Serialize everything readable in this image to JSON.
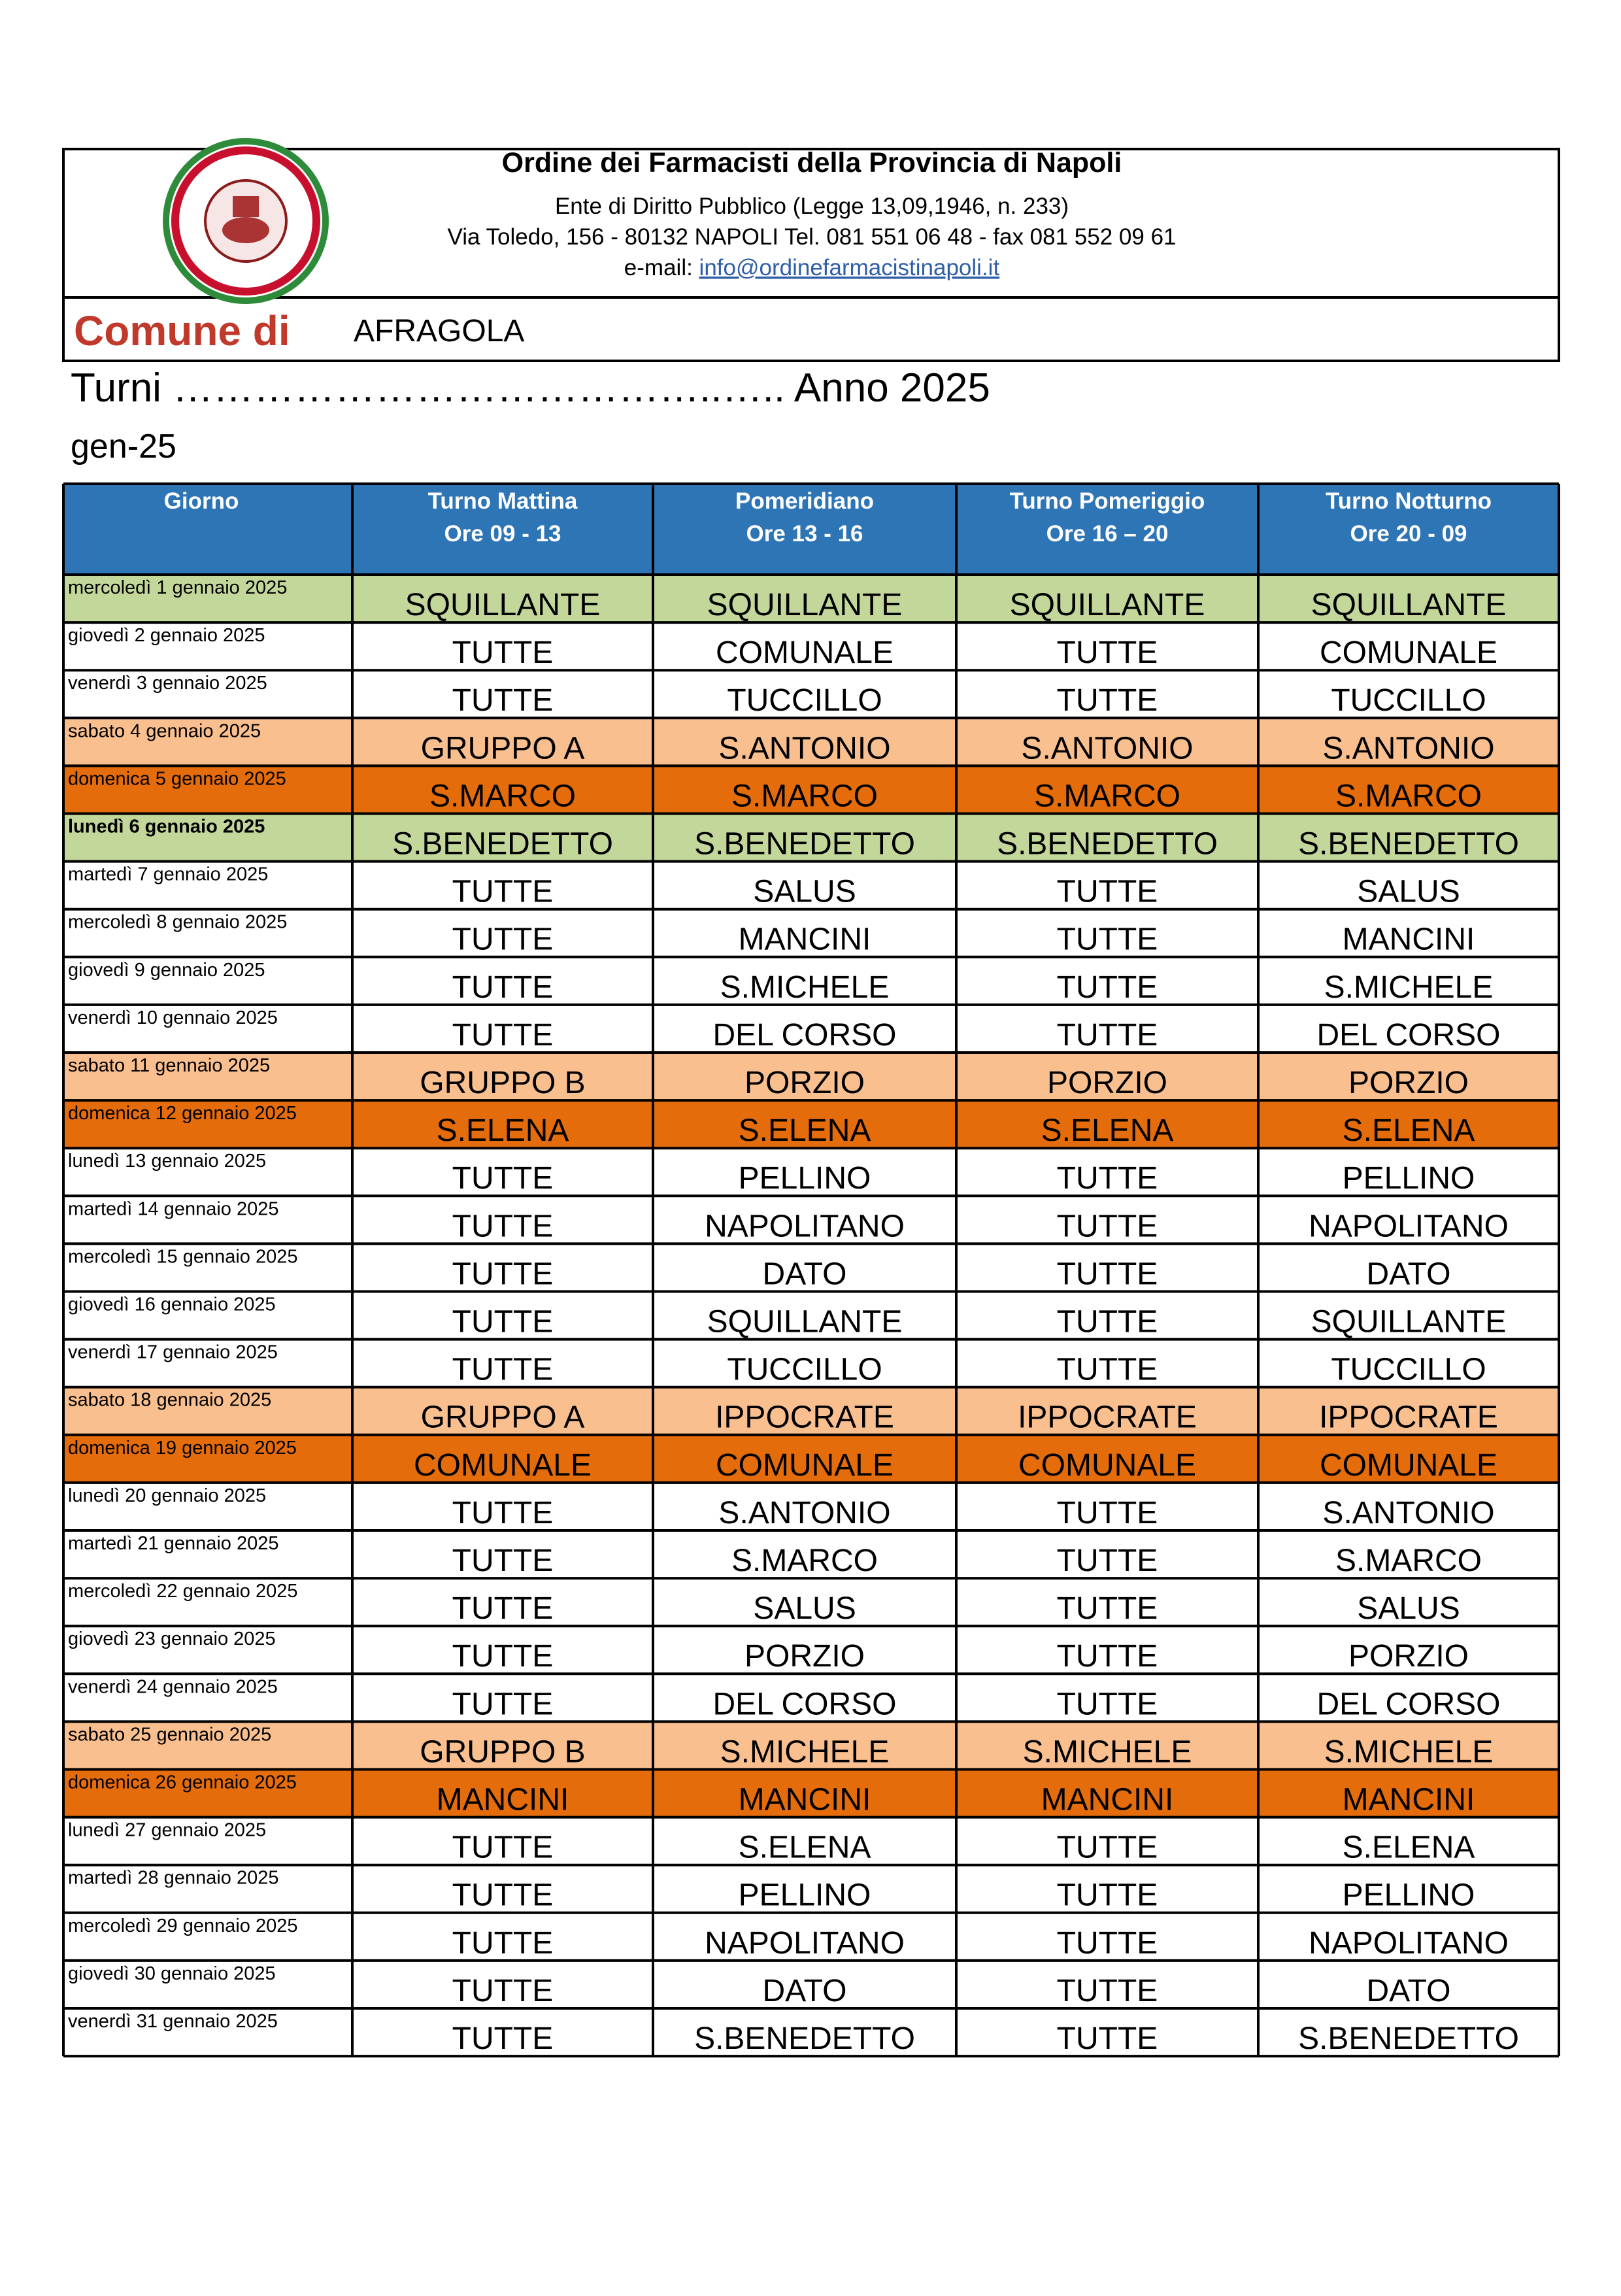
{
  "header": {
    "title": "Ordine dei Farmacisti della Provincia di Napoli",
    "line1": "Ente di Diritto Pubblico (Legge 13,09,1946, n. 233)",
    "line2": "Via Toledo, 156 - 80132 NAPOLI Tel. 081 551 06 48 - fax 081 552 09 61",
    "email_label": "e-mail: ",
    "email": "info@ordinefarmacistinapoli.it"
  },
  "comune": {
    "label": "Comune di",
    "name": "AFRAGOLA"
  },
  "turni": "Turni …………………………………..….. Anno 2025",
  "month": "gen-25",
  "table": {
    "columns": [
      [
        "Giorno"
      ],
      [
        "Turno Mattina",
        "Ore 09 - 13"
      ],
      [
        "Pomeridiano",
        "Ore 13 - 16"
      ],
      [
        "Turno Pomeriggio",
        "Ore 16 – 20"
      ],
      [
        "Turno Notturno",
        "Ore 20 - 09"
      ]
    ],
    "header_fill": "#2e75b6",
    "rows": [
      {
        "day": "mercoledì 1 gennaio 2025",
        "cells": [
          "SQUILLANTE",
          "SQUILLANTE",
          "SQUILLANTE",
          "SQUILLANTE"
        ],
        "fill": "#c4d79b"
      },
      {
        "day": "giovedì 2 gennaio 2025",
        "cells": [
          "TUTTE",
          "COMUNALE",
          "TUTTE",
          "COMUNALE"
        ],
        "fill": "#ffffff"
      },
      {
        "day": "venerdì 3 gennaio 2025",
        "cells": [
          "TUTTE",
          "TUCCILLO",
          "TUTTE",
          "TUCCILLO"
        ],
        "fill": "#ffffff"
      },
      {
        "day": "sabato 4 gennaio 2025",
        "cells": [
          "GRUPPO A",
          "S.ANTONIO",
          "S.ANTONIO",
          "S.ANTONIO"
        ],
        "fill": "#fabf8f"
      },
      {
        "day": "domenica 5 gennaio 2025",
        "cells": [
          "S.MARCO",
          "S.MARCO",
          "S.MARCO",
          "S.MARCO"
        ],
        "fill": "#e46c0a"
      },
      {
        "day": "lunedì 6 gennaio 2025",
        "cells": [
          "S.BENEDETTO",
          "S.BENEDETTO",
          "S.BENEDETTO",
          "S.BENEDETTO"
        ],
        "fill": "#c4d79b",
        "bold": true
      },
      {
        "day": "martedì 7 gennaio 2025",
        "cells": [
          "TUTTE",
          "SALUS",
          "TUTTE",
          "SALUS"
        ],
        "fill": "#ffffff"
      },
      {
        "day": "mercoledì 8 gennaio 2025",
        "cells": [
          "TUTTE",
          "MANCINI",
          "TUTTE",
          "MANCINI"
        ],
        "fill": "#ffffff"
      },
      {
        "day": "giovedì 9 gennaio 2025",
        "cells": [
          "TUTTE",
          "S.MICHELE",
          "TUTTE",
          "S.MICHELE"
        ],
        "fill": "#ffffff"
      },
      {
        "day": "venerdì 10 gennaio 2025",
        "cells": [
          "TUTTE",
          "DEL CORSO",
          "TUTTE",
          "DEL CORSO"
        ],
        "fill": "#ffffff"
      },
      {
        "day": "sabato 11 gennaio 2025",
        "cells": [
          "GRUPPO B",
          "PORZIO",
          "PORZIO",
          "PORZIO"
        ],
        "fill": "#fabf8f"
      },
      {
        "day": "domenica 12 gennaio 2025",
        "cells": [
          "S.ELENA",
          "S.ELENA",
          "S.ELENA",
          "S.ELENA"
        ],
        "fill": "#e46c0a"
      },
      {
        "day": "lunedì 13 gennaio 2025",
        "cells": [
          "TUTTE",
          "PELLINO",
          "TUTTE",
          "PELLINO"
        ],
        "fill": "#ffffff"
      },
      {
        "day": "martedì 14 gennaio 2025",
        "cells": [
          "TUTTE",
          "NAPOLITANO",
          "TUTTE",
          "NAPOLITANO"
        ],
        "fill": "#ffffff"
      },
      {
        "day": "mercoledì 15 gennaio 2025",
        "cells": [
          "TUTTE",
          "DATO",
          "TUTTE",
          "DATO"
        ],
        "fill": "#ffffff"
      },
      {
        "day": "giovedì 16 gennaio 2025",
        "cells": [
          "TUTTE",
          "SQUILLANTE",
          "TUTTE",
          "SQUILLANTE"
        ],
        "fill": "#ffffff"
      },
      {
        "day": "venerdì 17 gennaio 2025",
        "cells": [
          "TUTTE",
          "TUCCILLO",
          "TUTTE",
          "TUCCILLO"
        ],
        "fill": "#ffffff"
      },
      {
        "day": "sabato 18 gennaio 2025",
        "cells": [
          "GRUPPO A",
          "IPPOCRATE",
          "IPPOCRATE",
          "IPPOCRATE"
        ],
        "fill": "#fabf8f"
      },
      {
        "day": "domenica 19 gennaio 2025",
        "cells": [
          "COMUNALE",
          "COMUNALE",
          "COMUNALE",
          "COMUNALE"
        ],
        "fill": "#e46c0a"
      },
      {
        "day": "lunedì 20 gennaio 2025",
        "cells": [
          "TUTTE",
          "S.ANTONIO",
          "TUTTE",
          "S.ANTONIO"
        ],
        "fill": "#ffffff"
      },
      {
        "day": "martedì 21 gennaio 2025",
        "cells": [
          "TUTTE",
          "S.MARCO",
          "TUTTE",
          "S.MARCO"
        ],
        "fill": "#ffffff"
      },
      {
        "day": "mercoledì 22 gennaio 2025",
        "cells": [
          "TUTTE",
          "SALUS",
          "TUTTE",
          "SALUS"
        ],
        "fill": "#ffffff"
      },
      {
        "day": "giovedì 23 gennaio 2025",
        "cells": [
          "TUTTE",
          "PORZIO",
          "TUTTE",
          "PORZIO"
        ],
        "fill": "#ffffff"
      },
      {
        "day": "venerdì 24 gennaio 2025",
        "cells": [
          "TUTTE",
          "DEL CORSO",
          "TUTTE",
          "DEL CORSO"
        ],
        "fill": "#ffffff"
      },
      {
        "day": "sabato 25 gennaio 2025",
        "cells": [
          "GRUPPO B",
          "S.MICHELE",
          "S.MICHELE",
          "S.MICHELE"
        ],
        "fill": "#fabf8f"
      },
      {
        "day": "domenica 26 gennaio 2025",
        "cells": [
          "MANCINI",
          "MANCINI",
          "MANCINI",
          "MANCINI"
        ],
        "fill": "#e46c0a"
      },
      {
        "day": "lunedì 27 gennaio 2025",
        "cells": [
          "TUTTE",
          "S.ELENA",
          "TUTTE",
          "S.ELENA"
        ],
        "fill": "#ffffff"
      },
      {
        "day": "martedì 28 gennaio 2025",
        "cells": [
          "TUTTE",
          "PELLINO",
          "TUTTE",
          "PELLINO"
        ],
        "fill": "#ffffff"
      },
      {
        "day": "mercoledì 29 gennaio 2025",
        "cells": [
          "TUTTE",
          "NAPOLITANO",
          "TUTTE",
          "NAPOLITANO"
        ],
        "fill": "#ffffff"
      },
      {
        "day": "giovedì 30 gennaio 2025",
        "cells": [
          "TUTTE",
          "DATO",
          "TUTTE",
          "DATO"
        ],
        "fill": "#ffffff"
      },
      {
        "day": "venerdì 31 gennaio 2025",
        "cells": [
          "TUTTE",
          "S.BENEDETTO",
          "TUTTE",
          "S.BENEDETTO"
        ],
        "fill": "#ffffff"
      }
    ]
  }
}
